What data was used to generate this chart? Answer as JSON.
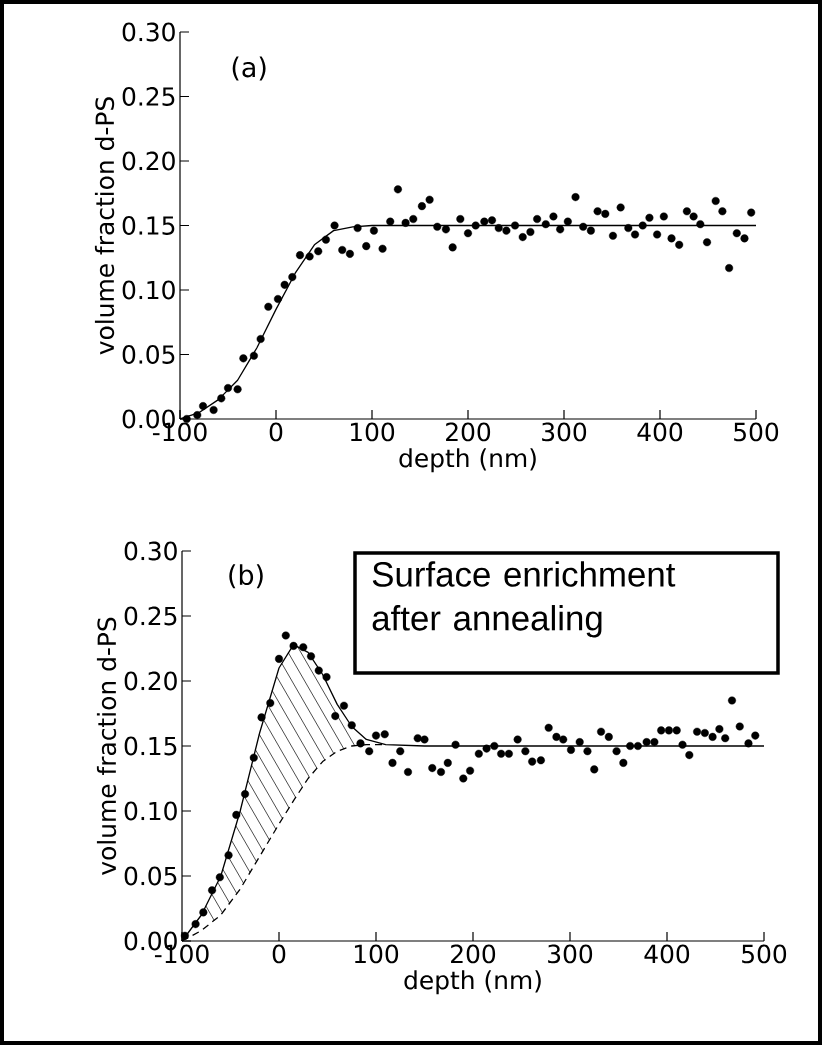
{
  "chart_data": [
    {
      "type": "scatter",
      "title": "(a)",
      "xlabel": "depth (nm)",
      "ylabel": "volume fraction d-PS",
      "xlim": [
        -100,
        500
      ],
      "ylim": [
        0,
        0.3
      ],
      "xticks": [
        -100,
        0,
        100,
        200,
        300,
        400,
        500
      ],
      "yticks": [
        {
          "value": 0,
          "label": "0.00"
        },
        {
          "value": 0.05,
          "label": "0.05"
        },
        {
          "value": 0.1,
          "label": "0.10"
        },
        {
          "value": 0.15,
          "label": "0.15"
        },
        {
          "value": 0.2,
          "label": "0.20"
        },
        {
          "value": 0.25,
          "label": "0.25"
        },
        {
          "value": 0.3,
          "label": "0.30"
        }
      ],
      "series": [
        {
          "color": "#000000",
          "marker": "circle",
          "x": [
            -93,
            -82,
            -76,
            -65,
            -57,
            -50,
            -40,
            -34,
            -23,
            -16,
            -8,
            2,
            9,
            17,
            25,
            35,
            44,
            52,
            61,
            69,
            77,
            85,
            94,
            102,
            111,
            119,
            127,
            135,
            143,
            152,
            160,
            168,
            177,
            184,
            192,
            200,
            208,
            217,
            225,
            232,
            240,
            249,
            257,
            265,
            272,
            281,
            289,
            296,
            304,
            312,
            320,
            328,
            335,
            343,
            351,
            359,
            367,
            374,
            382,
            389,
            397,
            404,
            412,
            420,
            428,
            435,
            442,
            449,
            458,
            465,
            472,
            480,
            488,
            495
          ],
          "values": [
            0.0,
            0.003,
            0.01,
            0.007,
            0.016,
            0.024,
            0.023,
            0.047,
            0.049,
            0.062,
            0.087,
            0.093,
            0.104,
            0.11,
            0.127,
            0.126,
            0.13,
            0.139,
            0.15,
            0.131,
            0.128,
            0.148,
            0.134,
            0.146,
            0.132,
            0.153,
            0.178,
            0.152,
            0.155,
            0.165,
            0.17,
            0.149,
            0.147,
            0.133,
            0.155,
            0.144,
            0.15,
            0.153,
            0.154,
            0.148,
            0.146,
            0.15,
            0.141,
            0.145,
            0.155,
            0.151,
            0.157,
            0.147,
            0.153,
            0.172,
            0.149,
            0.146,
            0.161,
            0.159,
            0.142,
            0.164,
            0.148,
            0.143,
            0.15,
            0.156,
            0.143,
            0.157,
            0.14,
            0.135,
            0.161,
            0.157,
            0.151,
            0.137,
            0.169,
            0.161,
            0.117,
            0.144,
            0.14,
            0.16
          ]
        },
        {
          "type": "line",
          "color": "#000000",
          "x": [
            -100,
            -80,
            -60,
            -40,
            -20,
            0,
            20,
            40,
            60,
            80,
            100,
            500
          ],
          "values": [
            0.0,
            0.005,
            0.015,
            0.03,
            0.055,
            0.085,
            0.113,
            0.135,
            0.146,
            0.149,
            0.15,
            0.15
          ]
        }
      ]
    },
    {
      "type": "scatter",
      "title": "(b)",
      "xlabel": "depth (nm)",
      "ylabel": "volume fraction d-PS",
      "xlim": [
        -100,
        500
      ],
      "ylim": [
        0,
        0.3
      ],
      "xticks": [
        -100,
        0,
        100,
        200,
        300,
        400,
        500
      ],
      "yticks": [
        {
          "value": 0,
          "label": "0.00"
        },
        {
          "value": 0.05,
          "label": "0.05"
        },
        {
          "value": 0.1,
          "label": "0.10"
        },
        {
          "value": 0.15,
          "label": "0.15"
        },
        {
          "value": 0.2,
          "label": "0.20"
        },
        {
          "value": 0.25,
          "label": "0.25"
        },
        {
          "value": 0.3,
          "label": "0.30"
        }
      ],
      "annotations": [
        "Surface enrichment after annealing"
      ],
      "series": [
        {
          "color": "#000000",
          "marker": "circle",
          "x": [
            -97,
            -86,
            -78,
            -69,
            -61,
            -52,
            -44,
            -35,
            -26,
            -18,
            -9,
            0,
            7,
            15,
            25,
            33,
            41,
            49,
            58,
            67,
            75,
            84,
            93,
            100,
            109,
            117,
            125,
            133,
            143,
            150,
            158,
            167,
            174,
            182,
            190,
            197,
            206,
            214,
            222,
            229,
            237,
            246,
            254,
            261,
            270,
            278,
            286,
            293,
            301,
            310,
            318,
            325,
            332,
            340,
            348,
            355,
            362,
            370,
            379,
            387,
            394,
            402,
            410,
            416,
            423,
            431,
            439,
            447,
            454,
            460,
            467,
            475,
            484,
            491
          ],
          "values": [
            0.004,
            0.013,
            0.022,
            0.039,
            0.049,
            0.066,
            0.097,
            0.113,
            0.141,
            0.172,
            0.183,
            0.217,
            0.235,
            0.227,
            0.226,
            0.219,
            0.208,
            0.203,
            0.173,
            0.181,
            0.166,
            0.152,
            0.146,
            0.158,
            0.159,
            0.137,
            0.146,
            0.13,
            0.156,
            0.155,
            0.133,
            0.13,
            0.137,
            0.151,
            0.125,
            0.131,
            0.144,
            0.148,
            0.15,
            0.144,
            0.144,
            0.155,
            0.146,
            0.138,
            0.139,
            0.164,
            0.157,
            0.155,
            0.147,
            0.153,
            0.146,
            0.132,
            0.161,
            0.157,
            0.146,
            0.137,
            0.15,
            0.15,
            0.153,
            0.153,
            0.162,
            0.162,
            0.162,
            0.151,
            0.143,
            0.161,
            0.16,
            0.157,
            0.163,
            0.156,
            0.185,
            0.165,
            0.152,
            0.158
          ]
        },
        {
          "type": "line",
          "color": "#000000",
          "x": [
            -100,
            -80,
            -60,
            -40,
            -20,
            0,
            15,
            30,
            45,
            60,
            75,
            90,
            110,
            150,
            500
          ],
          "values": [
            0.0,
            0.02,
            0.05,
            0.1,
            0.16,
            0.21,
            0.228,
            0.222,
            0.205,
            0.182,
            0.165,
            0.155,
            0.151,
            0.15,
            0.15
          ]
        },
        {
          "type": "line",
          "color": "#000000",
          "line_style": "dashed",
          "x": [
            -100,
            -80,
            -60,
            -40,
            -20,
            0,
            15,
            30,
            45,
            60,
            75,
            90,
            110
          ],
          "values": [
            0.0,
            0.008,
            0.02,
            0.04,
            0.065,
            0.09,
            0.108,
            0.125,
            0.138,
            0.146,
            0.15,
            0.151,
            0.151
          ]
        }
      ]
    }
  ]
}
